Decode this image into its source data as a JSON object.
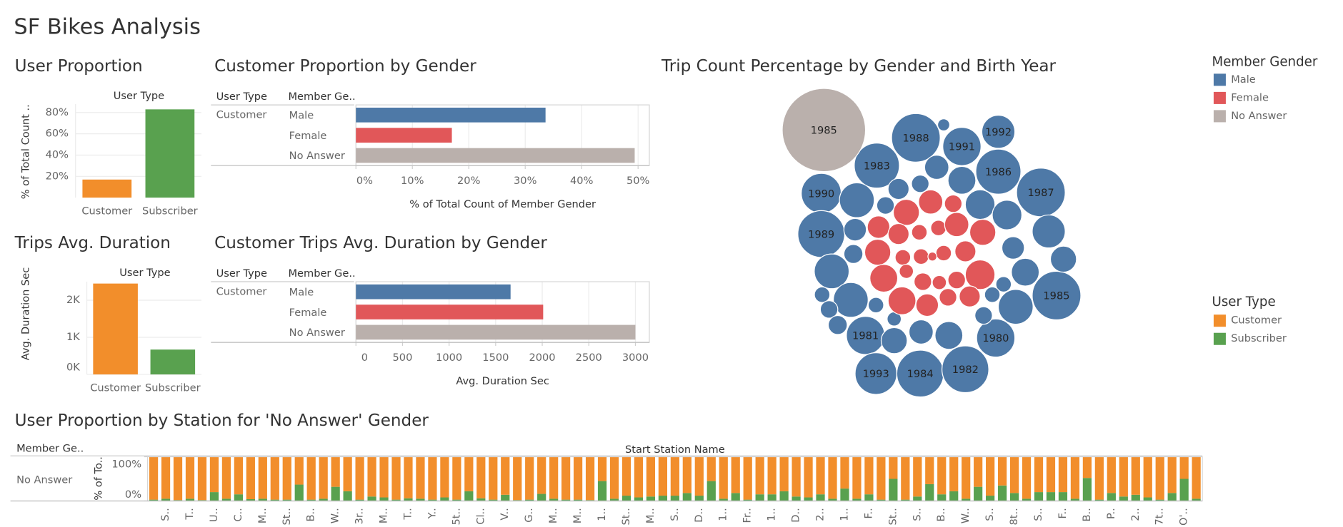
{
  "title": "SF Bikes Analysis",
  "chart_data": [
    {
      "type": "bar",
      "title": "User Proportion",
      "header": "User Type",
      "y_label": "% of Total Count ..",
      "categories": [
        "Customer",
        "Subscriber"
      ],
      "values": [
        17,
        83
      ],
      "colors": [
        "#f28e2b",
        "#59a14f"
      ],
      "ylim": [
        0,
        88
      ],
      "yticks": [
        {
          "value": 20,
          "label": "20%"
        },
        {
          "value": 40,
          "label": "40%"
        },
        {
          "value": 60,
          "label": "60%"
        },
        {
          "value": 80,
          "label": "80%"
        }
      ],
      "grid": true
    },
    {
      "type": "hbar",
      "title": "Customer Proportion by Gender",
      "headers": [
        "User Type",
        "Member Ge.."
      ],
      "row": "Customer",
      "categories": [
        "Male",
        "Female",
        "No Answer"
      ],
      "values": [
        33.6,
        17,
        49.4
      ],
      "colors": [
        "#4e79a7",
        "#e15759",
        "#bab0ac"
      ],
      "xlim": [
        0,
        52
      ],
      "xticks": [
        {
          "value": 0,
          "label": "0%"
        },
        {
          "value": 10,
          "label": "10%"
        },
        {
          "value": 20,
          "label": "20%"
        },
        {
          "value": 30,
          "label": "30%"
        },
        {
          "value": 40,
          "label": "40%"
        },
        {
          "value": 50,
          "label": "50%"
        }
      ],
      "x_label": "% of Total Count of Member Gender",
      "grid": true
    },
    {
      "type": "bar",
      "title": "Trips Avg. Duration",
      "header": "User Type",
      "y_label": "Avg. Duration Sec",
      "categories": [
        "Customer",
        "Subscriber"
      ],
      "values": [
        2450,
        670
      ],
      "colors": [
        "#f28e2b",
        "#59a14f"
      ],
      "ylim": [
        0,
        2500
      ],
      "yticks": [
        {
          "value": 0,
          "label": "0K"
        },
        {
          "value": 1000,
          "label": "1K"
        },
        {
          "value": 2000,
          "label": "2K"
        }
      ],
      "grid": true
    },
    {
      "type": "hbar",
      "title": "Customer Trips Avg. Duration by Gender",
      "headers": [
        "User Type",
        "Member Ge.."
      ],
      "row": "Customer",
      "categories": [
        "Male",
        "Female",
        "No Answer"
      ],
      "values": [
        1660,
        2010,
        3000
      ],
      "colors": [
        "#4e79a7",
        "#e15759",
        "#bab0ac"
      ],
      "xlim": [
        0,
        3150
      ],
      "xticks": [
        0,
        500,
        1000,
        1500,
        2000,
        2500,
        3000
      ],
      "x_label": "Avg. Duration Sec",
      "grid": true
    },
    {
      "type": "bubble",
      "title": "Trip Count Percentage by Gender and Birth Year",
      "legend_title": "Member Gender",
      "series": [
        {
          "name": "Male",
          "color": "#4e79a7",
          "labels": [
            "1988",
            "1991",
            "1992",
            "1983",
            "1986",
            "1990",
            "1987",
            "1989",
            "1985",
            "1981",
            "1980",
            "1993",
            "1984",
            "1982",
            null,
            null,
            null,
            null,
            null,
            null,
            null,
            null,
            null,
            null,
            null,
            null,
            null,
            null,
            null,
            null,
            null,
            null,
            null,
            null,
            null,
            null,
            null,
            null,
            null,
            null,
            null,
            null,
            null
          ],
          "values": [
            1.78,
            1.1,
            0.82,
            1.53,
            1.53,
            1.2,
            1.78,
            1.65,
            1.78,
            1.1,
            1.1,
            1.31,
            1.65,
            1.65,
            0.44,
            0.58,
            0.91,
            0.33,
            0.23,
            0.66,
            0.66,
            0.82,
            0.51,
            0.38,
            0.91,
            0.27,
            0.58,
            0.38,
            0.91,
            0.91,
            0.18,
            0.23,
            0.27,
            0.51,
            0.44,
            0.58,
            0.23,
            0.18,
            0.18,
            0.15,
            0.18,
            0.23,
            0.11
          ]
        },
        {
          "name": "Female",
          "color": "#e15759",
          "labels": [
            null,
            null,
            null,
            null,
            null,
            null,
            null,
            null,
            null,
            null,
            null,
            null,
            null,
            null,
            null,
            null,
            null,
            null,
            null,
            null,
            null,
            null,
            null,
            null,
            null
          ],
          "values": [
            0.51,
            0.44,
            0.23,
            0.38,
            0.33,
            0.18,
            0.18,
            0.44,
            0.51,
            0.51,
            0.18,
            0.18,
            0.18,
            0.33,
            0.58,
            0.15,
            0.23,
            0.15,
            0.23,
            0.66,
            0.58,
            0.38,
            0.23,
            0.33,
            0.06
          ]
        },
        {
          "name": "No Answer",
          "color": "#bab0ac",
          "labels": [
            "1985"
          ],
          "values": [
            5.22
          ]
        }
      ]
    },
    {
      "type": "stacked_bar",
      "title": "User Proportion by Station for 'No Answer' Gender",
      "header": "Member Ge..",
      "row": "No Answer",
      "x_label": "Start Station Name",
      "y_label": "% of To..",
      "legend_title": "User Type",
      "categories": [
        null,
        "S..",
        null,
        "T..",
        null,
        "U..",
        null,
        "C..",
        null,
        "M..",
        null,
        "St..",
        null,
        "B..",
        null,
        "W..",
        null,
        "3r..",
        null,
        "M..",
        null,
        "T..",
        null,
        "Y..",
        null,
        "5t..",
        null,
        "Cl..",
        null,
        "V..",
        null,
        "G..",
        null,
        "M..",
        null,
        "M..",
        null,
        "1..",
        null,
        "St..",
        null,
        "M..",
        null,
        "S..",
        null,
        "D..",
        null,
        "1..",
        null,
        "Fr..",
        null,
        "1..",
        null,
        "D..",
        null,
        "2..",
        null,
        "1..",
        null,
        "F..",
        null,
        "St..",
        null,
        "S..",
        null,
        "B..",
        null,
        "W..",
        null,
        "S..",
        null,
        "8t..",
        null,
        "S..",
        null,
        "F..",
        null,
        "B..",
        null,
        "P..",
        null,
        "2..",
        null,
        "7t..",
        null,
        "O'..",
        null
      ],
      "series": [
        {
          "name": "Subscriber",
          "color": "#59a14f",
          "values": [
            3,
            5,
            2,
            5,
            2,
            20,
            5,
            15,
            4,
            5,
            3,
            3,
            37,
            3,
            5,
            32,
            22,
            3,
            10,
            8,
            3,
            6,
            5,
            3,
            8,
            3,
            22,
            6,
            3,
            14,
            2,
            3,
            16,
            5,
            3,
            3,
            2,
            45,
            5,
            12,
            8,
            10,
            12,
            12,
            18,
            12,
            45,
            5,
            18,
            3,
            15,
            15,
            22,
            10,
            8,
            15,
            5,
            28,
            5,
            15,
            3,
            50,
            3,
            10,
            38,
            15,
            22,
            5,
            32,
            12,
            35,
            18,
            5,
            20,
            20,
            20,
            5,
            52,
            3,
            18,
            10,
            14,
            8,
            3,
            18,
            50,
            5
          ]
        },
        {
          "name": "Customer",
          "color": "#f28e2b",
          "values": [
            97,
            95,
            98,
            95,
            98,
            80,
            95,
            85,
            96,
            95,
            97,
            97,
            63,
            97,
            95,
            68,
            78,
            97,
            90,
            92,
            97,
            94,
            95,
            97,
            92,
            97,
            78,
            94,
            97,
            86,
            98,
            97,
            84,
            95,
            97,
            97,
            98,
            55,
            95,
            88,
            92,
            90,
            88,
            88,
            82,
            88,
            55,
            95,
            82,
            97,
            85,
            85,
            78,
            90,
            92,
            85,
            95,
            72,
            95,
            85,
            97,
            50,
            97,
            90,
            62,
            85,
            78,
            95,
            68,
            88,
            65,
            82,
            95,
            80,
            80,
            80,
            95,
            48,
            97,
            82,
            90,
            86,
            92,
            97,
            82,
            50,
            95
          ]
        }
      ],
      "ylim": [
        0,
        100
      ],
      "yticks": [
        {
          "value": 0,
          "label": "0%"
        },
        {
          "value": 100,
          "label": "100%"
        }
      ]
    }
  ]
}
